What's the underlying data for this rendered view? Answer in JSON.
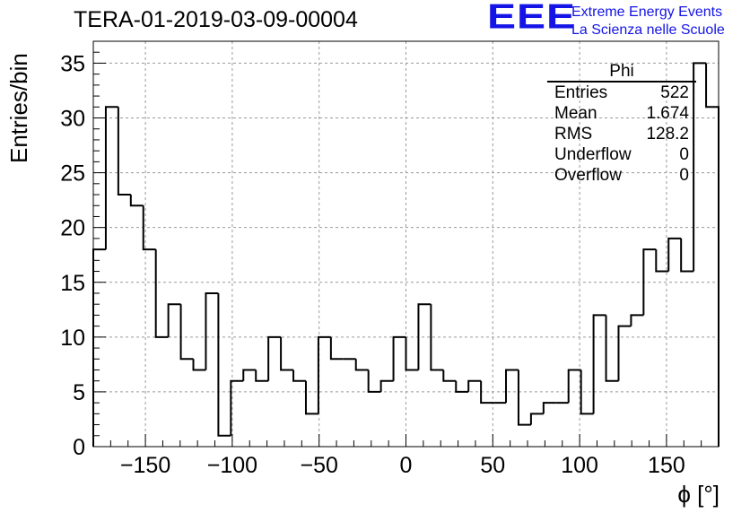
{
  "title": "TERA-01-2019-03-09-00004",
  "logo": {
    "mark": "EEE",
    "line1": "Extreme Energy Events",
    "line2": "La Scienza nelle Scuole",
    "color": "#1414e6"
  },
  "stats_box": {
    "title": "Phi",
    "rows": [
      {
        "label": "Entries",
        "value": "522"
      },
      {
        "label": "Mean",
        "value": "1.674"
      },
      {
        "label": "RMS",
        "value": "128.2"
      },
      {
        "label": "Underflow",
        "value": "0"
      },
      {
        "label": "Overflow",
        "value": "0"
      }
    ]
  },
  "chart_data": {
    "type": "bar",
    "style": "step-histogram",
    "title": "TERA-01-2019-03-09-00004",
    "xlabel": "ϕ [°]",
    "ylabel": "Entries/bin",
    "xlim": [
      -180,
      180
    ],
    "ylim": [
      0,
      37
    ],
    "bin_width": 7.2,
    "bin_edges_start": -180,
    "values": [
      18,
      31,
      23,
      22,
      18,
      10,
      13,
      8,
      7,
      14,
      1,
      6,
      7,
      6,
      10,
      7,
      6,
      3,
      10,
      8,
      8,
      7,
      5,
      6,
      10,
      7,
      13,
      7,
      6,
      5,
      6,
      4,
      4,
      7,
      2,
      3,
      4,
      4,
      7,
      3,
      12,
      6,
      11,
      12,
      18,
      16,
      19,
      16,
      35,
      31
    ],
    "xticks": [
      -150,
      -100,
      -50,
      0,
      50,
      100,
      150
    ],
    "xtick_labels": [
      "−150",
      "−100",
      "−50",
      "0",
      "50",
      "100",
      "150"
    ],
    "yticks": [
      0,
      5,
      10,
      15,
      20,
      25,
      30,
      35
    ],
    "ytick_labels": [
      "0",
      "5",
      "10",
      "15",
      "20",
      "25",
      "30",
      "35"
    ],
    "grid": true,
    "line_color": "#000000",
    "grid_color": "#9a9a9a"
  }
}
